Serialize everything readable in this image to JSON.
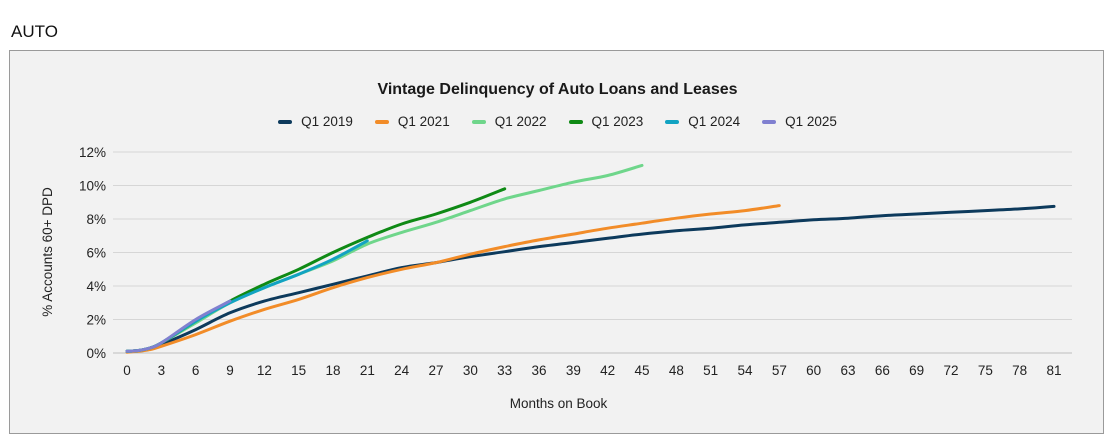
{
  "section_label": "AUTO",
  "chart_data": {
    "type": "line",
    "title": "Vintage Delinquency of Auto Loans and Leases",
    "xlabel": "Months on Book",
    "ylabel": "% Accounts 60+ DPD",
    "xlim": [
      0,
      81
    ],
    "ylim": [
      0,
      12
    ],
    "x_ticks": [
      0,
      3,
      6,
      9,
      12,
      15,
      18,
      21,
      24,
      27,
      30,
      33,
      36,
      39,
      42,
      45,
      48,
      51,
      54,
      57,
      60,
      63,
      66,
      69,
      72,
      75,
      78,
      81
    ],
    "y_ticks": [
      0,
      2,
      4,
      6,
      8,
      10,
      12
    ],
    "y_tick_labels": [
      "0%",
      "2%",
      "4%",
      "6%",
      "8%",
      "10%",
      "12%"
    ],
    "grid": "horizontal",
    "legend_position": "top-center",
    "series": [
      {
        "name": "Q1 2019",
        "color": "#0d3a5c",
        "x": [
          0,
          1,
          2,
          3,
          6,
          9,
          12,
          15,
          18,
          21,
          24,
          27,
          30,
          33,
          36,
          39,
          42,
          45,
          48,
          51,
          54,
          57,
          60,
          63,
          66,
          69,
          72,
          75,
          78,
          81
        ],
        "values": [
          0.1,
          0.15,
          0.25,
          0.5,
          1.4,
          2.4,
          3.1,
          3.6,
          4.1,
          4.6,
          5.1,
          5.4,
          5.75,
          6.05,
          6.35,
          6.6,
          6.85,
          7.1,
          7.3,
          7.45,
          7.65,
          7.8,
          7.95,
          8.05,
          8.2,
          8.3,
          8.4,
          8.5,
          8.6,
          8.75
        ]
      },
      {
        "name": "Q1 2021",
        "color": "#f28c28",
        "x": [
          0,
          1,
          2,
          3,
          6,
          9,
          12,
          15,
          18,
          21,
          24,
          27,
          30,
          33,
          36,
          39,
          42,
          45,
          48,
          51,
          54,
          57
        ],
        "values": [
          0.05,
          0.1,
          0.2,
          0.4,
          1.1,
          1.9,
          2.6,
          3.2,
          3.9,
          4.5,
          5.0,
          5.4,
          5.9,
          6.35,
          6.75,
          7.1,
          7.45,
          7.75,
          8.05,
          8.3,
          8.5,
          8.8
        ]
      },
      {
        "name": "Q1 2022",
        "color": "#6fd68b",
        "x": [
          0,
          1,
          2,
          3,
          6,
          9,
          12,
          15,
          18,
          21,
          24,
          27,
          30,
          33,
          36,
          39,
          42,
          45
        ],
        "values": [
          0.1,
          0.15,
          0.3,
          0.6,
          1.8,
          3.0,
          3.9,
          4.7,
          5.5,
          6.5,
          7.2,
          7.8,
          8.5,
          9.2,
          9.7,
          10.2,
          10.6,
          11.2
        ]
      },
      {
        "name": "Q1 2023",
        "color": "#0f8a15",
        "x": [
          0,
          1,
          2,
          3,
          6,
          9,
          12,
          15,
          18,
          21,
          24,
          27,
          30,
          33
        ],
        "values": [
          0.1,
          0.15,
          0.3,
          0.6,
          1.9,
          3.1,
          4.1,
          5.0,
          6.0,
          6.9,
          7.7,
          8.3,
          9.0,
          9.8
        ]
      },
      {
        "name": "Q1 2024",
        "color": "#12a3c2",
        "x": [
          0,
          1,
          2,
          3,
          6,
          9,
          12,
          15,
          18,
          21
        ],
        "values": [
          0.1,
          0.15,
          0.3,
          0.6,
          1.9,
          3.0,
          3.9,
          4.7,
          5.6,
          6.7
        ]
      },
      {
        "name": "Q1 2025",
        "color": "#8080d0",
        "x": [
          0,
          1,
          2,
          3,
          6,
          9
        ],
        "values": [
          0.1,
          0.15,
          0.3,
          0.6,
          2.0,
          3.1
        ]
      }
    ]
  }
}
